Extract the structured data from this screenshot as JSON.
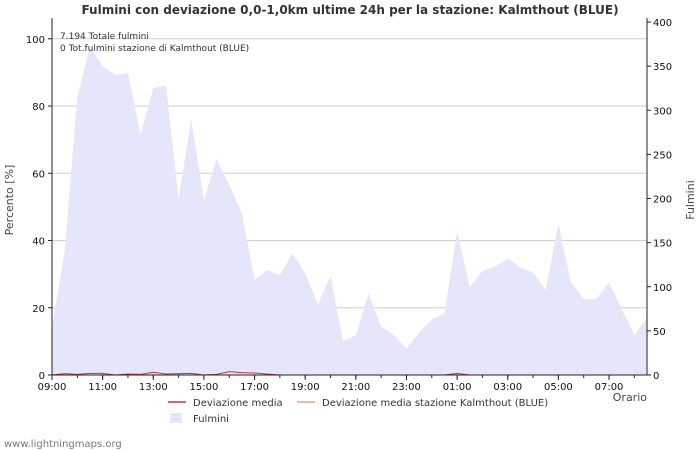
{
  "chart_data": {
    "type": "area",
    "title": "Fulmini con deviazione 0,0-1,0km ultime 24h per la stazione: Kalmthout (BLUE)",
    "ylabel_left": "Percento   [%]",
    "ylabel_right": "Fulmini",
    "xlabel": "Orario",
    "ylim_left": [
      0,
      105
    ],
    "ylim_right": [
      0,
      400
    ],
    "yticks_left": [
      0,
      20,
      40,
      60,
      80,
      100
    ],
    "yticks_right": [
      0,
      50,
      100,
      150,
      200,
      250,
      300,
      350,
      400
    ],
    "xlim": [
      9.0,
      32.5
    ],
    "xticks": [
      {
        "pos": 9,
        "label": "09:00"
      },
      {
        "pos": 11,
        "label": "11:00"
      },
      {
        "pos": 13,
        "label": "13:00"
      },
      {
        "pos": 15,
        "label": "15:00"
      },
      {
        "pos": 17,
        "label": "17:00"
      },
      {
        "pos": 19,
        "label": "19:00"
      },
      {
        "pos": 21,
        "label": "21:00"
      },
      {
        "pos": 23,
        "label": "23:00"
      },
      {
        "pos": 25,
        "label": "01:00"
      },
      {
        "pos": 27,
        "label": "03:00"
      },
      {
        "pos": 29,
        "label": "05:00"
      },
      {
        "pos": 31,
        "label": "07:00"
      }
    ],
    "info_lines": [
      "7.194 Totale fulmini",
      "0 Tot.fulmini stazione di Kalmthout (BLUE)"
    ],
    "series": [
      {
        "name": "Fulmini",
        "axis": "right",
        "color": "#e6e6fa",
        "x": [
          9.0,
          9.5,
          10.0,
          10.5,
          11.0,
          11.5,
          12.0,
          12.5,
          13.0,
          13.5,
          14.0,
          14.5,
          15.0,
          15.5,
          16.0,
          16.5,
          17.0,
          17.5,
          18.0,
          18.5,
          19.0,
          19.5,
          20.0,
          20.5,
          21.0,
          21.5,
          22.0,
          22.5,
          23.0,
          23.5,
          24.0,
          24.5,
          25.0,
          25.5,
          26.0,
          26.5,
          27.0,
          27.5,
          28.0,
          28.5,
          29.0,
          29.5,
          30.0,
          30.5,
          31.0,
          31.5,
          32.0,
          32.5
        ],
        "values": [
          55,
          140,
          315,
          372,
          350,
          340,
          342,
          272,
          325,
          328,
          200,
          290,
          198,
          245,
          215,
          183,
          108,
          119,
          113,
          138,
          115,
          80,
          112,
          38,
          45,
          92,
          55,
          45,
          30,
          48,
          63,
          70,
          163,
          100,
          118,
          123,
          132,
          122,
          116,
          96,
          172,
          105,
          86,
          86,
          105,
          75,
          45,
          65
        ]
      },
      {
        "name": "Deviazione media",
        "axis": "left",
        "color": "#cc3344",
        "x": [
          9.0,
          9.5,
          10.0,
          10.5,
          11.0,
          11.5,
          12.0,
          12.5,
          13.0,
          13.5,
          14.0,
          14.5,
          15.0,
          15.5,
          16.0,
          16.5,
          17.0,
          17.5,
          18.0,
          18.5,
          19.0,
          19.5,
          20.0,
          20.5,
          21.0,
          21.5,
          22.0,
          22.5,
          23.0,
          23.5,
          24.0,
          24.5,
          25.0,
          25.5,
          26.0,
          26.5,
          27.0,
          27.5,
          28.0,
          28.5,
          29.0,
          29.5,
          30.0,
          30.5,
          31.0,
          31.5,
          32.0,
          32.5
        ],
        "values": [
          0,
          0.4,
          0.2,
          0.5,
          0.5,
          0,
          0.3,
          0.2,
          0.8,
          0.3,
          0.4,
          0.5,
          0,
          0.2,
          1.0,
          0.7,
          0.6,
          0.3,
          0,
          0,
          0,
          0,
          0,
          0,
          0,
          0,
          0,
          0,
          0,
          0,
          0,
          0,
          0.5,
          0,
          0,
          0,
          0,
          0,
          0,
          0,
          0,
          0,
          0,
          0,
          0,
          0,
          0,
          0
        ]
      },
      {
        "name": "Deviazione media stazione Kalmthout (BLUE)",
        "axis": "left",
        "color": "#f0a080",
        "x": [],
        "values": []
      }
    ]
  },
  "footer": "www.lightningmaps.org"
}
